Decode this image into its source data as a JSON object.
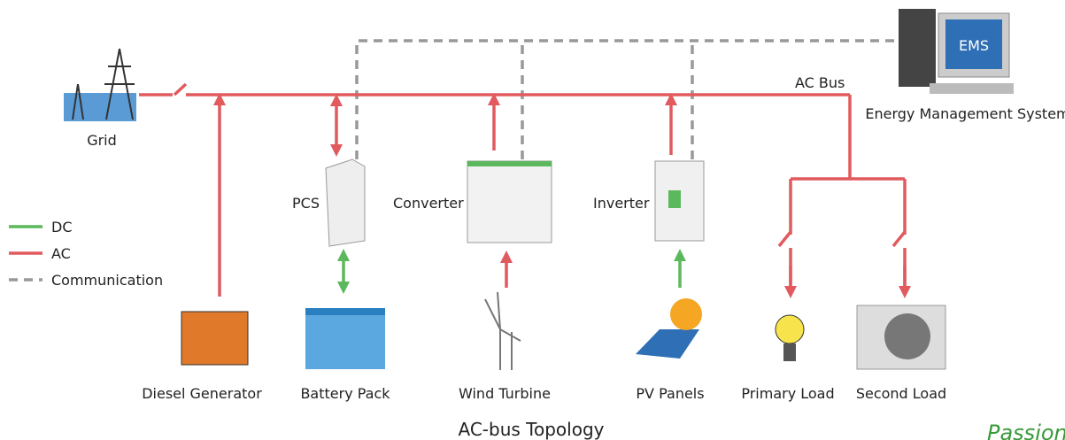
{
  "bus_label": "AC Bus",
  "ems": {
    "label": "EMS",
    "caption": "Energy Management System"
  },
  "grid": "Grid",
  "converters": [
    "PCS",
    "Converter",
    "Inverter"
  ],
  "legend": [
    "DC",
    "AC",
    "Communication"
  ],
  "devices": [
    "Diesel Generator",
    "Battery Pack",
    "Wind Turbine",
    "PV Panels",
    "Primary Load",
    "Second Load"
  ],
  "title": "AC-bus Topology",
  "watermark": "Passion"
}
